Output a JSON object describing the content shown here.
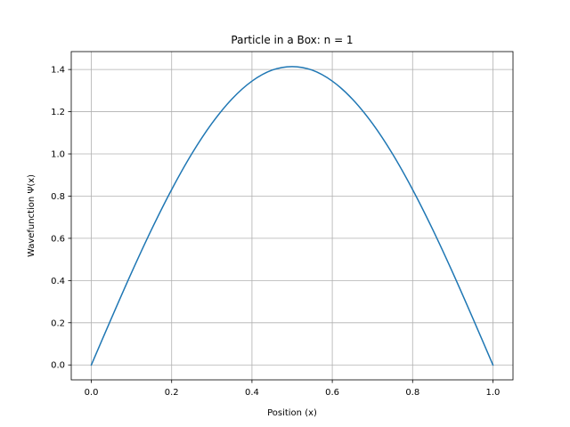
{
  "chart_data": {
    "type": "line",
    "title": "Particle in a Box: n = 1",
    "xlabel": "Position (x)",
    "ylabel": "Wavefunction Ψ(x)",
    "xlim": [
      -0.05,
      1.05
    ],
    "ylim": [
      -0.0707,
      1.4849
    ],
    "grid": true,
    "x_ticks": [
      0.0,
      0.2,
      0.4,
      0.6,
      0.8,
      1.0
    ],
    "x_tick_labels": [
      "0.0",
      "0.2",
      "0.4",
      "0.6",
      "0.8",
      "1.0"
    ],
    "y_ticks": [
      0.0,
      0.2,
      0.4,
      0.6,
      0.8,
      1.0,
      1.2,
      1.4
    ],
    "y_tick_labels": [
      "0.0",
      "0.2",
      "0.4",
      "0.6",
      "0.8",
      "1.0",
      "1.2",
      "1.4"
    ],
    "series": [
      {
        "color": "#1f77b4",
        "x": [
          0.0,
          0.05,
          0.1,
          0.15,
          0.2,
          0.25,
          0.3,
          0.35,
          0.4,
          0.45,
          0.5,
          0.55,
          0.6,
          0.65,
          0.7,
          0.75,
          0.8,
          0.85,
          0.9,
          0.95,
          1.0
        ],
        "y": [
          0.0,
          0.221,
          0.437,
          0.642,
          0.831,
          1.0,
          1.144,
          1.26,
          1.345,
          1.397,
          1.414,
          1.397,
          1.345,
          1.26,
          1.144,
          1.0,
          0.831,
          0.642,
          0.437,
          0.221,
          0.0
        ]
      }
    ]
  }
}
